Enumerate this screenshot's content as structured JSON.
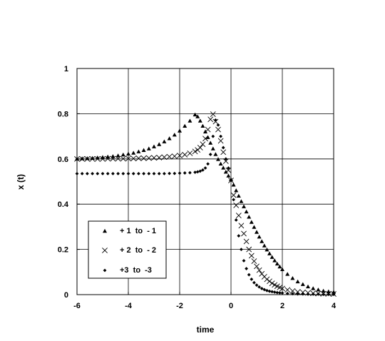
{
  "chart_data": {
    "type": "scatter",
    "title": "",
    "xlabel": "time",
    "ylabel": "x (t)",
    "xlim": [
      -6,
      4
    ],
    "ylim": [
      0,
      1
    ],
    "xticks": [
      -6,
      -4,
      -2,
      0,
      2,
      4
    ],
    "yticks": [
      0,
      0.2,
      0.4,
      0.6,
      0.8,
      1
    ],
    "xtick_labels": [
      "-6",
      "-4",
      "-2",
      "0",
      "2",
      "4"
    ],
    "ytick_labels": [
      "0",
      "0.2",
      "0.4",
      "0.6",
      "0.8",
      "1"
    ],
    "grid": true,
    "legend_position": "bottom-left",
    "series": [
      {
        "name": "+ 1  to  - 1",
        "marker": "triangle",
        "x": [
          -6.0,
          -5.8,
          -5.6,
          -5.4,
          -5.2,
          -5.0,
          -4.8,
          -4.6,
          -4.4,
          -4.2,
          -4.0,
          -3.8,
          -3.6,
          -3.4,
          -3.2,
          -3.0,
          -2.8,
          -2.6,
          -2.4,
          -2.2,
          -2.0,
          -1.8,
          -1.6,
          -1.4,
          -1.3,
          -1.2,
          -1.1,
          -1.0,
          -0.9,
          -0.8,
          -0.7,
          -0.6,
          -0.5,
          -0.4,
          -0.3,
          -0.2,
          -0.1,
          0.0,
          0.1,
          0.2,
          0.3,
          0.4,
          0.5,
          0.6,
          0.7,
          0.8,
          0.9,
          1.0,
          1.1,
          1.2,
          1.3,
          1.4,
          1.5,
          1.6,
          1.7,
          1.8,
          1.9,
          2.0,
          2.2,
          2.4,
          2.6,
          2.8,
          3.0,
          3.2,
          3.4,
          3.6,
          3.8,
          4.0
        ],
        "y": [
          0.6,
          0.601,
          0.602,
          0.603,
          0.605,
          0.607,
          0.609,
          0.611,
          0.614,
          0.618,
          0.622,
          0.626,
          0.632,
          0.638,
          0.645,
          0.654,
          0.664,
          0.676,
          0.69,
          0.706,
          0.724,
          0.745,
          0.768,
          0.795,
          0.787,
          0.768,
          0.745,
          0.72,
          0.695,
          0.67,
          0.645,
          0.62,
          0.598,
          0.578,
          0.56,
          0.542,
          0.525,
          0.509,
          0.485,
          0.46,
          0.436,
          0.412,
          0.389,
          0.366,
          0.343,
          0.32,
          0.298,
          0.276,
          0.255,
          0.235,
          0.216,
          0.198,
          0.181,
          0.165,
          0.15,
          0.136,
          0.123,
          0.111,
          0.09,
          0.072,
          0.057,
          0.045,
          0.035,
          0.027,
          0.021,
          0.016,
          0.013,
          0.011
        ]
      },
      {
        "name": "+ 2  to  - 2",
        "marker": "x",
        "x": [
          -6.0,
          -5.8,
          -5.6,
          -5.4,
          -5.2,
          -5.0,
          -4.8,
          -4.6,
          -4.4,
          -4.2,
          -4.0,
          -3.8,
          -3.6,
          -3.4,
          -3.2,
          -3.0,
          -2.8,
          -2.6,
          -2.4,
          -2.2,
          -2.0,
          -1.8,
          -1.6,
          -1.4,
          -1.3,
          -1.2,
          -1.1,
          -1.0,
          -0.9,
          -0.8,
          -0.7,
          -0.6,
          -0.5,
          -0.4,
          -0.3,
          -0.2,
          -0.1,
          0.0,
          0.1,
          0.2,
          0.3,
          0.4,
          0.5,
          0.6,
          0.7,
          0.8,
          0.9,
          1.0,
          1.1,
          1.2,
          1.3,
          1.4,
          1.5,
          1.6,
          1.7,
          1.8,
          1.9,
          2.0,
          2.2,
          2.4,
          2.6,
          2.8,
          3.0,
          3.2,
          3.4,
          3.6,
          3.8,
          4.0
        ],
        "y": [
          0.6,
          0.6,
          0.6,
          0.6,
          0.6,
          0.6,
          0.601,
          0.601,
          0.601,
          0.601,
          0.602,
          0.602,
          0.603,
          0.603,
          0.604,
          0.605,
          0.606,
          0.608,
          0.61,
          0.612,
          0.615,
          0.619,
          0.625,
          0.633,
          0.64,
          0.65,
          0.665,
          0.69,
          0.73,
          0.775,
          0.798,
          0.765,
          0.73,
          0.68,
          0.63,
          0.59,
          0.55,
          0.505,
          0.44,
          0.395,
          0.35,
          0.305,
          0.27,
          0.235,
          0.2,
          0.172,
          0.148,
          0.125,
          0.108,
          0.092,
          0.079,
          0.068,
          0.059,
          0.05,
          0.043,
          0.037,
          0.032,
          0.027,
          0.021,
          0.016,
          0.012,
          0.01,
          0.008,
          0.006,
          0.005,
          0.004,
          0.004,
          0.003
        ]
      },
      {
        "name": "+3  to  -3",
        "marker": "diamond",
        "x": [
          -6.0,
          -5.8,
          -5.6,
          -5.4,
          -5.2,
          -5.0,
          -4.8,
          -4.6,
          -4.4,
          -4.2,
          -4.0,
          -3.8,
          -3.6,
          -3.4,
          -3.2,
          -3.0,
          -2.8,
          -2.6,
          -2.4,
          -2.2,
          -2.0,
          -1.8,
          -1.6,
          -1.4,
          -1.3,
          -1.2,
          -1.1,
          -1.0,
          -0.9,
          -0.8,
          -0.7,
          -0.6,
          -0.5,
          -0.4,
          -0.3,
          -0.2,
          -0.1,
          0.0,
          0.1,
          0.2,
          0.3,
          0.4,
          0.5,
          0.6,
          0.7,
          0.8,
          0.9,
          1.0,
          1.1,
          1.2,
          1.3,
          1.4,
          1.5,
          1.6,
          1.7,
          1.8,
          1.9,
          2.0,
          2.2,
          2.4,
          2.6,
          2.8,
          3.0,
          3.2,
          3.4,
          3.6,
          3.8,
          4.0
        ],
        "y": [
          0.535,
          0.535,
          0.535,
          0.535,
          0.535,
          0.535,
          0.535,
          0.535,
          0.535,
          0.535,
          0.535,
          0.535,
          0.535,
          0.535,
          0.535,
          0.535,
          0.535,
          0.535,
          0.536,
          0.536,
          0.537,
          0.538,
          0.539,
          0.541,
          0.543,
          0.546,
          0.551,
          0.56,
          0.578,
          0.62,
          0.7,
          0.772,
          0.75,
          0.7,
          0.65,
          0.6,
          0.56,
          0.505,
          0.42,
          0.33,
          0.26,
          0.2,
          0.15,
          0.115,
          0.088,
          0.068,
          0.053,
          0.042,
          0.034,
          0.027,
          0.022,
          0.018,
          0.015,
          0.013,
          0.011,
          0.009,
          0.008,
          0.007,
          0.005,
          0.004,
          0.003,
          0.003,
          0.002,
          0.002,
          0.002,
          0.001,
          0.001,
          0.001
        ]
      }
    ]
  }
}
